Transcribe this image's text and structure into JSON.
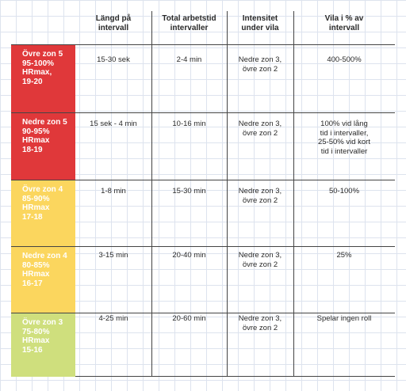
{
  "headers": [
    "Längd på\nintervall",
    "Total arbetstid\nintervaller",
    "Intensitet\nunder vila",
    "Vila i % av\nintervall"
  ],
  "rows": [
    {
      "zone": "Övre zon 5\n95-100%\nHRmax,\n19-20",
      "color": "#e0383a",
      "cells": [
        "15-30 sek",
        "2-4 min",
        "Nedre zon 3,\növre zon 2",
        "400-500%"
      ]
    },
    {
      "zone": "Nedre zon 5\n90-95%\nHRmax\n18-19",
      "color": "#e0383a",
      "cells": [
        "15 sek - 4 min",
        "10-16 min",
        "Nedre zon 3,\növre zon 2",
        "100% vid lång\ntid i intervaller,\n25-50% vid kort\ntid i intervaller"
      ]
    },
    {
      "zone": "Övre zon 4\n85-90%\nHRmax\n17-18",
      "color": "#fbd65e",
      "cells": [
        "1-8 min",
        "15-30 min",
        "Nedre zon 3,\növre zon 2",
        "50-100%"
      ]
    },
    {
      "zone": "Nedre zon 4\n80-85%\nHRmax\n16-17",
      "color": "#fbd65e",
      "cells": [
        "3-15 min",
        "20-40 min",
        "Nedre zon 3,\növre zon 2",
        "25%"
      ]
    },
    {
      "zone": "Övre zon 3\n75-80%\nHRmax\n15-16",
      "color": "#cfdf7d",
      "cells": [
        "4-25 min",
        "20-60 min",
        "Nedre zon 3,\növre zon 2",
        "Spelar ingen roll"
      ]
    }
  ]
}
